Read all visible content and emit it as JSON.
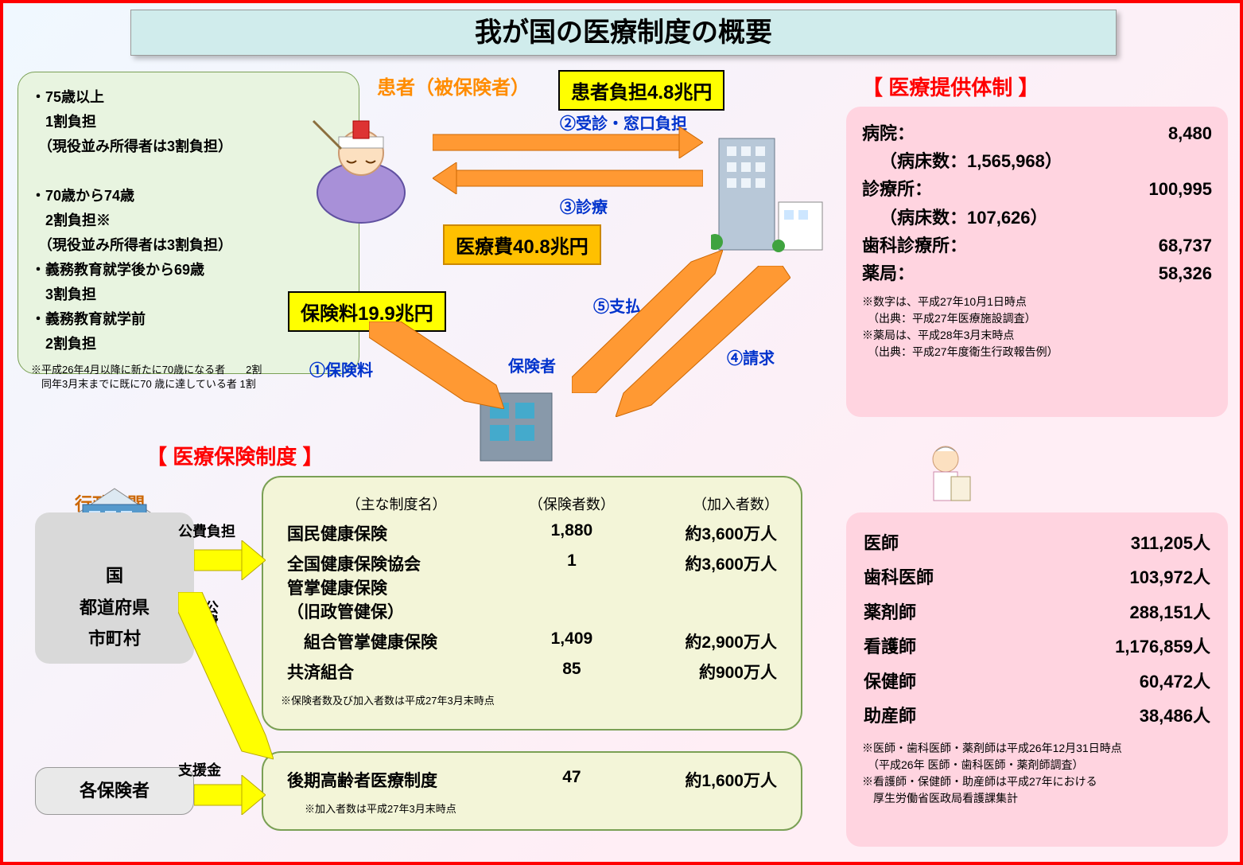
{
  "title": "我が国の医療制度の概要",
  "colors": {
    "outer_border": "#ff0000",
    "title_bg": "#d0ecec",
    "section_title": "#ff0000",
    "green_box": "#e8f4e0",
    "yellow": "#ffff00",
    "orange": "#ffc000",
    "pink": "#ffd4e0",
    "tan": "#f3f5d8",
    "gray": "#d9d9d9",
    "blue_text": "#0033cc",
    "orange_text": "#ff8c00"
  },
  "burden_box": {
    "lines": [
      "・75歳以上",
      "　1割負担",
      "　（現役並み所得者は3割負担）",
      "",
      "・70歳から74歳",
      "　2割負担※",
      "　（現役並み所得者は3割負担）",
      "・義務教育就学後から69歳",
      "　3割負担",
      "・義務教育就学前",
      "　2割負担"
    ],
    "note": "※平成26年4月以降に新たに70歳になる者　　2割\n　同年3月末までに既に70 歳に達している者 1割"
  },
  "patient_label": "患者（被保険者）",
  "labels": {
    "patient_burden": "患者負担4.8兆円",
    "medical_cost": "医療費40.8兆円",
    "insurance_premium": "保険料19.9兆円",
    "step1": "①保険料",
    "step2": "②受診・窓口負担",
    "step3": "③診療",
    "step4": "④請求",
    "step5": "⑤支払",
    "insurer": "保険者",
    "provider_title": "【 医療提供体制 】",
    "insurance_title": "【 医療保険制度 】",
    "admin": "行政機関",
    "public": "公費負担",
    "public2": "公費負担",
    "support": "支援金"
  },
  "providers": {
    "rows": [
      {
        "label": "病院：",
        "value": "8,480",
        "indent": "（病床数：1,565,968）"
      },
      {
        "label": "診療所：",
        "value": "100,995",
        "indent": "（病床数：107,626）"
      },
      {
        "label": "歯科診療所：",
        "value": "68,737"
      },
      {
        "label": "薬局：",
        "value": "58,326"
      }
    ],
    "notes": [
      "※数字は、平成27年10月1日時点",
      "　（出典：平成27年医療施設調査）",
      "※薬局は、平成28年3月末時点",
      "　（出典：平成27年度衛生行政報告例）"
    ]
  },
  "gov": {
    "lines": [
      "国",
      "都道府県",
      "市町村"
    ]
  },
  "insurer_box": "各保険者",
  "insurance_table": {
    "headers": [
      "（主な制度名）",
      "（保険者数）",
      "（加入者数）"
    ],
    "rows": [
      {
        "name": "国民健康保険",
        "insurers": "1,880",
        "members": "約3,600万人"
      },
      {
        "name": "全国健康保険協会\n管掌健康保険\n（旧政管健保）",
        "insurers": "1",
        "members": "約3,600万人"
      },
      {
        "name": "　組合管掌健康保険",
        "insurers": "1,409",
        "members": "約2,900万人"
      },
      {
        "name": "共済組合",
        "insurers": "85",
        "members": "約900万人"
      }
    ],
    "note": "※保険者数及び加入者数は平成27年3月末時点"
  },
  "late_elderly": {
    "name": "後期高齢者医療制度",
    "insurers": "47",
    "members": "約1,600万人",
    "note": "※加入者数は平成27年3月末時点"
  },
  "personnel": {
    "rows": [
      {
        "label": "医師",
        "value": "311,205人"
      },
      {
        "label": "歯科医師",
        "value": "103,972人"
      },
      {
        "label": "薬剤師",
        "value": "288,151人"
      },
      {
        "label": "看護師",
        "value": "1,176,859人"
      },
      {
        "label": "保健師",
        "value": "60,472人"
      },
      {
        "label": "助産師",
        "value": "38,486人"
      }
    ],
    "notes": [
      "※医師・歯科医師・薬剤師は平成26年12月31日時点",
      "　（平成26年 医師・歯科医師・薬剤師調査）",
      "※看護師・保健師・助産師は平成27年における",
      "　厚生労働省医政局看護課集計"
    ]
  }
}
